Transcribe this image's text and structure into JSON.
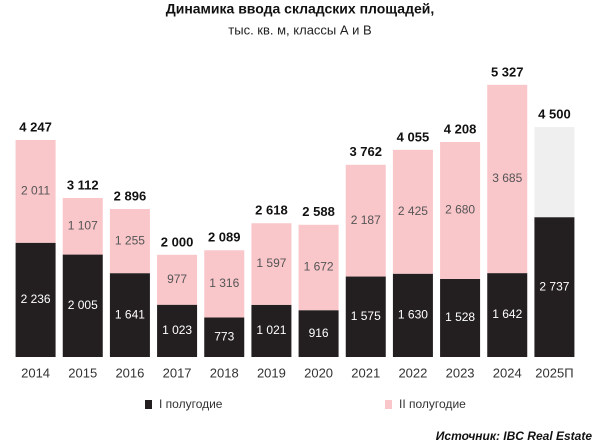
{
  "chart_data": {
    "type": "stacked_bar",
    "title": "Динамика ввода складских площадей,",
    "subtitle": "тыс. кв. м, классы А и В",
    "source": "Источник: IBC Real Estate",
    "categories": [
      "2014",
      "2015",
      "2016",
      "2017",
      "2018",
      "2019",
      "2020",
      "2021",
      "2022",
      "2023",
      "2024",
      "2025П"
    ],
    "series": [
      {
        "name": "I полугодие",
        "color": "#231f20",
        "values": [
          2236,
          2005,
          1641,
          1023,
          773,
          1021,
          916,
          1575,
          1630,
          1528,
          1642,
          2737
        ],
        "value_labels": [
          "2 236",
          "2 005",
          "1 641",
          "1 023",
          "773",
          "1 021",
          "916",
          "1 575",
          "1 630",
          "1 528",
          "1 642",
          "2 737"
        ]
      },
      {
        "name": "II полугодие",
        "color": "#f9c6ca",
        "colors": [
          "#f9c6ca",
          "#f9c6ca",
          "#f9c6ca",
          "#f9c6ca",
          "#f9c6ca",
          "#f9c6ca",
          "#f9c6ca",
          "#f9c6ca",
          "#f9c6ca",
          "#f9c6ca",
          "#f9c6ca",
          "#efefef"
        ],
        "values": [
          2011,
          1107,
          1255,
          977,
          1316,
          1597,
          1672,
          2187,
          2425,
          2680,
          3685,
          1763
        ],
        "value_labels": [
          "2 011",
          "1 107",
          "1 255",
          "977",
          "1 316",
          "1 597",
          "1 672",
          "2 187",
          "2 425",
          "2 680",
          "3 685",
          null
        ]
      }
    ],
    "totals": {
      "values": [
        4247,
        3112,
        2896,
        2000,
        2089,
        2618,
        2588,
        3762,
        4055,
        4208,
        5327,
        4500
      ],
      "value_labels": [
        "4 247",
        "3 112",
        "2 896",
        "2 000",
        "2 089",
        "2 618",
        "2 588",
        "3 762",
        "4 055",
        "4 208",
        "5 327",
        "4 500"
      ]
    },
    "ylim": [
      0,
      5500
    ]
  }
}
